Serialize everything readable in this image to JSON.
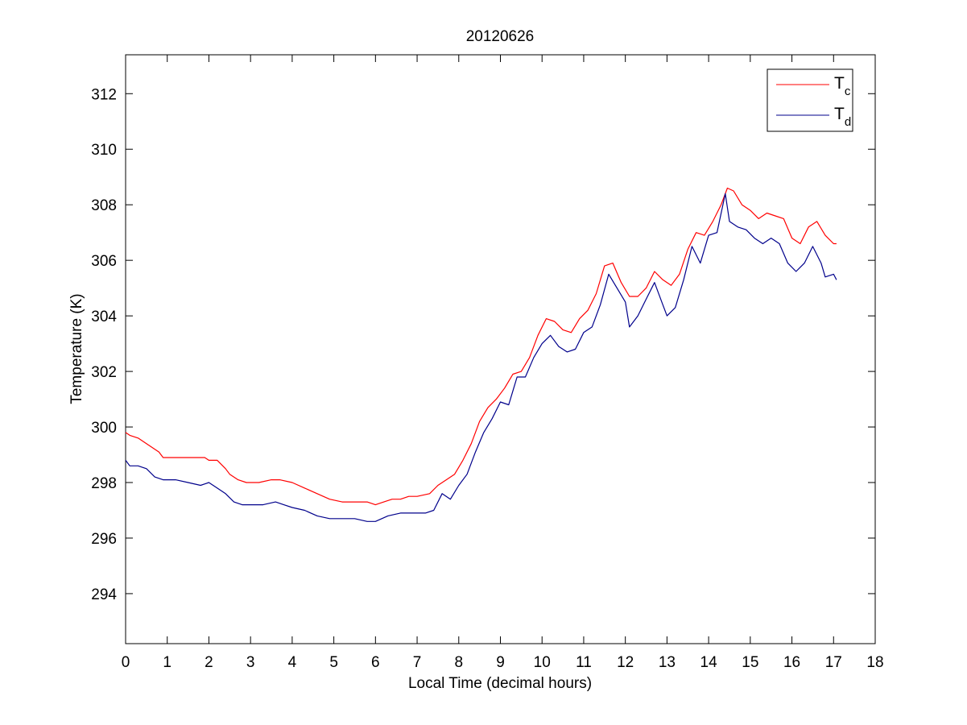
{
  "chart_data": {
    "type": "line",
    "title": "20120626",
    "xlabel": "Local Time (decimal hours)",
    "ylabel": "Temperature (K)",
    "xlim": [
      0,
      18
    ],
    "ylim": [
      292.2,
      313.4
    ],
    "xticks": [
      0,
      1,
      2,
      3,
      4,
      5,
      6,
      7,
      8,
      9,
      10,
      11,
      12,
      13,
      14,
      15,
      16,
      17,
      18
    ],
    "yticks": [
      294,
      296,
      298,
      300,
      302,
      304,
      306,
      308,
      310,
      312
    ],
    "grid": false,
    "legend": {
      "placement": "top-right",
      "entries": [
        {
          "base": "T",
          "sub": "c"
        },
        {
          "base": "T",
          "sub": "d"
        }
      ]
    },
    "series": [
      {
        "color": "#ff0000",
        "points": [
          [
            0,
            299.8
          ],
          [
            0.1,
            299.7
          ],
          [
            0.3,
            299.6
          ],
          [
            0.5,
            299.4
          ],
          [
            0.8,
            299.1
          ],
          [
            0.9,
            298.9
          ],
          [
            1.5,
            298.9
          ],
          [
            1.9,
            298.9
          ],
          [
            2.0,
            298.8
          ],
          [
            2.2,
            298.8
          ],
          [
            2.4,
            298.5
          ],
          [
            2.5,
            298.3
          ],
          [
            2.7,
            298.1
          ],
          [
            2.9,
            298.0
          ],
          [
            3.2,
            298.0
          ],
          [
            3.5,
            298.1
          ],
          [
            3.7,
            298.1
          ],
          [
            4.0,
            298.0
          ],
          [
            4.3,
            297.8
          ],
          [
            4.6,
            297.6
          ],
          [
            4.9,
            297.4
          ],
          [
            5.2,
            297.3
          ],
          [
            5.5,
            297.3
          ],
          [
            5.8,
            297.3
          ],
          [
            6.0,
            297.2
          ],
          [
            6.2,
            297.3
          ],
          [
            6.4,
            297.4
          ],
          [
            6.6,
            297.4
          ],
          [
            6.8,
            297.5
          ],
          [
            7.0,
            297.5
          ],
          [
            7.3,
            297.6
          ],
          [
            7.5,
            297.9
          ],
          [
            7.7,
            298.1
          ],
          [
            7.9,
            298.3
          ],
          [
            8.1,
            298.8
          ],
          [
            8.3,
            299.4
          ],
          [
            8.5,
            300.2
          ],
          [
            8.7,
            300.7
          ],
          [
            8.9,
            301.0
          ],
          [
            9.1,
            301.4
          ],
          [
            9.3,
            301.9
          ],
          [
            9.5,
            302.0
          ],
          [
            9.7,
            302.5
          ],
          [
            9.9,
            303.3
          ],
          [
            10.1,
            303.9
          ],
          [
            10.3,
            303.8
          ],
          [
            10.5,
            303.5
          ],
          [
            10.7,
            303.4
          ],
          [
            10.9,
            303.9
          ],
          [
            11.1,
            304.2
          ],
          [
            11.3,
            304.8
          ],
          [
            11.5,
            305.8
          ],
          [
            11.7,
            305.9
          ],
          [
            11.9,
            305.2
          ],
          [
            12.1,
            304.7
          ],
          [
            12.3,
            304.7
          ],
          [
            12.5,
            305.0
          ],
          [
            12.7,
            305.6
          ],
          [
            12.9,
            305.3
          ],
          [
            13.1,
            305.1
          ],
          [
            13.3,
            305.5
          ],
          [
            13.5,
            306.4
          ],
          [
            13.7,
            307.0
          ],
          [
            13.9,
            306.9
          ],
          [
            14.1,
            307.4
          ],
          [
            14.3,
            308.0
          ],
          [
            14.45,
            308.6
          ],
          [
            14.6,
            308.5
          ],
          [
            14.8,
            308.0
          ],
          [
            15.0,
            307.8
          ],
          [
            15.2,
            307.5
          ],
          [
            15.4,
            307.7
          ],
          [
            15.6,
            307.6
          ],
          [
            15.8,
            307.5
          ],
          [
            16.0,
            306.8
          ],
          [
            16.2,
            306.6
          ],
          [
            16.4,
            307.2
          ],
          [
            16.6,
            307.4
          ],
          [
            16.8,
            306.9
          ],
          [
            17.0,
            306.6
          ],
          [
            17.07,
            306.6
          ]
        ]
      },
      {
        "color": "#00008b",
        "points": [
          [
            0,
            298.8
          ],
          [
            0.1,
            298.6
          ],
          [
            0.3,
            298.6
          ],
          [
            0.5,
            298.5
          ],
          [
            0.7,
            298.2
          ],
          [
            0.9,
            298.1
          ],
          [
            1.2,
            298.1
          ],
          [
            1.5,
            298.0
          ],
          [
            1.8,
            297.9
          ],
          [
            2.0,
            298.0
          ],
          [
            2.2,
            297.8
          ],
          [
            2.4,
            297.6
          ],
          [
            2.6,
            297.3
          ],
          [
            2.8,
            297.2
          ],
          [
            3.0,
            297.2
          ],
          [
            3.3,
            297.2
          ],
          [
            3.6,
            297.3
          ],
          [
            3.8,
            297.2
          ],
          [
            4.0,
            297.1
          ],
          [
            4.3,
            297.0
          ],
          [
            4.6,
            296.8
          ],
          [
            4.9,
            296.7
          ],
          [
            5.2,
            296.7
          ],
          [
            5.5,
            296.7
          ],
          [
            5.8,
            296.6
          ],
          [
            6.0,
            296.6
          ],
          [
            6.3,
            296.8
          ],
          [
            6.6,
            296.9
          ],
          [
            6.9,
            296.9
          ],
          [
            7.2,
            296.9
          ],
          [
            7.4,
            297.0
          ],
          [
            7.6,
            297.6
          ],
          [
            7.8,
            297.4
          ],
          [
            8.0,
            297.9
          ],
          [
            8.2,
            298.3
          ],
          [
            8.4,
            299.1
          ],
          [
            8.6,
            299.8
          ],
          [
            8.8,
            300.3
          ],
          [
            9.0,
            300.9
          ],
          [
            9.2,
            300.8
          ],
          [
            9.4,
            301.8
          ],
          [
            9.6,
            301.8
          ],
          [
            9.8,
            302.5
          ],
          [
            10.0,
            303.0
          ],
          [
            10.2,
            303.3
          ],
          [
            10.4,
            302.9
          ],
          [
            10.6,
            302.7
          ],
          [
            10.8,
            302.8
          ],
          [
            11.0,
            303.4
          ],
          [
            11.2,
            303.6
          ],
          [
            11.4,
            304.4
          ],
          [
            11.6,
            305.5
          ],
          [
            11.8,
            305.0
          ],
          [
            12.0,
            304.5
          ],
          [
            12.1,
            303.6
          ],
          [
            12.3,
            304.0
          ],
          [
            12.5,
            304.6
          ],
          [
            12.7,
            305.2
          ],
          [
            12.9,
            304.4
          ],
          [
            13.0,
            304.0
          ],
          [
            13.2,
            304.3
          ],
          [
            13.4,
            305.3
          ],
          [
            13.6,
            306.5
          ],
          [
            13.8,
            305.9
          ],
          [
            14.0,
            306.9
          ],
          [
            14.2,
            307.0
          ],
          [
            14.4,
            308.4
          ],
          [
            14.5,
            307.4
          ],
          [
            14.7,
            307.2
          ],
          [
            14.9,
            307.1
          ],
          [
            15.1,
            306.8
          ],
          [
            15.3,
            306.6
          ],
          [
            15.5,
            306.8
          ],
          [
            15.7,
            306.6
          ],
          [
            15.9,
            305.9
          ],
          [
            16.1,
            305.6
          ],
          [
            16.3,
            305.9
          ],
          [
            16.5,
            306.5
          ],
          [
            16.7,
            305.9
          ],
          [
            16.8,
            305.4
          ],
          [
            17.0,
            305.5
          ],
          [
            17.07,
            305.3
          ]
        ]
      }
    ]
  }
}
